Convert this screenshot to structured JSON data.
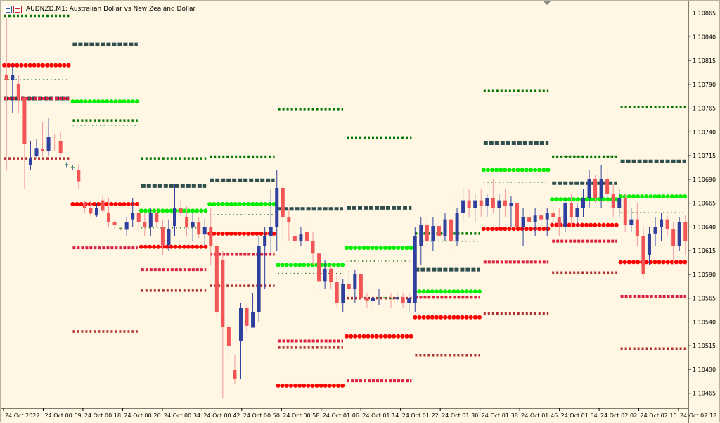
{
  "window": {
    "symbol_line": "AUDNZD,M1:  Australian Dollar vs New Zealand Dollar"
  },
  "colors": {
    "background": "#fff7e4",
    "bull_candle": "#2f3f9e",
    "bear_candle": "#f25555",
    "doji": "#2aa02a",
    "pivot": "#2f4f4f",
    "resistance_1": "#00ee00",
    "support_1": "#ff0000",
    "resistance_2": "#2f7f2f",
    "support_2": "#dd2040",
    "resistance_3": "#007700",
    "support_3": "#b03030"
  },
  "chart_data": {
    "type": "candlestick",
    "symbol": "AUDNZD",
    "timeframe": "M1",
    "ylim": [
      1.1045,
      1.10875
    ],
    "y_ticks": [
      "1.10865",
      "1.10840",
      "1.10815",
      "1.10790",
      "1.10765",
      "1.10740",
      "1.10715",
      "1.10690",
      "1.10665",
      "1.10640",
      "1.10615",
      "1.10590",
      "1.10565",
      "1.10540",
      "1.10515",
      "1.10490",
      "1.10465"
    ],
    "x_ticks": [
      "24 Oct 2022",
      "24 Oct 00:09",
      "24 Oct 00:18",
      "24 Oct 00:26",
      "24 Oct 00:34",
      "24 Oct 00:42",
      "24 Oct 00:50",
      "24 Oct 00:58",
      "24 Oct 01:06",
      "24 Oct 01:14",
      "24 Oct 01:22",
      "24 Oct 01:30",
      "24 Oct 01:38",
      "24 Oct 01:46",
      "24 Oct 01:54",
      "24 Oct 02:02",
      "24 Oct 02:10",
      "24 Oct 02:18"
    ],
    "levels": [
      {
        "segment": 0,
        "pivot": 1.10775,
        "r1": null,
        "s1": 1.1081,
        "r2": 1.10795,
        "s2": 1.10775,
        "r3": 1.10862,
        "s3": 1.10712
      },
      {
        "segment": 1,
        "pivot": 1.10832,
        "r1": 1.10772,
        "s1": 1.10664,
        "r2": 1.10747,
        "s2": 1.10618,
        "r3": 1.10752,
        "s3": 1.1053
      },
      {
        "segment": 2,
        "pivot": 1.10683,
        "r1": 1.10657,
        "s1": 1.10619,
        "r2": 1.10639,
        "s2": 1.10595,
        "r3": 1.10712,
        "s3": 1.10573
      },
      {
        "segment": 3,
        "pivot": 1.10689,
        "r1": 1.10664,
        "s1": 1.10633,
        "r2": 1.10653,
        "s2": 1.10611,
        "r3": 1.10714,
        "s3": 1.10578
      },
      {
        "segment": 4,
        "pivot": 1.10659,
        "r1": 1.106,
        "s1": 1.10473,
        "r2": 1.10591,
        "s2": 1.1052,
        "r3": 1.10764,
        "s3": 1.10513
      },
      {
        "segment": 5,
        "pivot": 1.1066,
        "r1": 1.10618,
        "s1": 1.10525,
        "r2": 1.10604,
        "s2": 1.10478,
        "r3": 1.10734,
        "s3": 1.10565
      },
      {
        "segment": 6,
        "pivot": 1.10595,
        "r1": 1.10572,
        "s1": 1.10545,
        "r2": 1.10625,
        "s2": 1.10566,
        "r3": 1.10633,
        "s3": 1.10505
      },
      {
        "segment": 7,
        "pivot": 1.10728,
        "r1": 1.107,
        "s1": 1.10638,
        "r2": 1.10687,
        "s2": 1.10603,
        "r3": 1.10783,
        "s3": 1.10549
      },
      {
        "segment": 8,
        "pivot": 1.10686,
        "r1": 1.10669,
        "s1": 1.10642,
        "r2": 1.10714,
        "s2": 1.10625,
        "r3": 1.10714,
        "s3": 1.10592
      },
      {
        "segment": 9,
        "pivot": 1.10709,
        "r1": 1.10672,
        "s1": 1.10603,
        "r2": 1.10655,
        "s2": 1.10567,
        "r3": 1.10766,
        "s3": 1.10512
      }
    ],
    "candles": [
      {
        "o": 1.108,
        "h": 1.1086,
        "l": 1.107,
        "c": 1.10795
      },
      {
        "o": 1.10795,
        "h": 1.1081,
        "l": 1.1076,
        "c": 1.108
      },
      {
        "o": 1.1079,
        "h": 1.108,
        "l": 1.1076,
        "c": 1.10776
      },
      {
        "o": 1.10776,
        "h": 1.10778,
        "l": 1.1068,
        "c": 1.10727
      },
      {
        "o": 1.10705,
        "h": 1.1073,
        "l": 1.107,
        "c": 1.10712
      },
      {
        "o": 1.10715,
        "h": 1.10732,
        "l": 1.10712,
        "c": 1.10723
      },
      {
        "o": 1.10722,
        "h": 1.1075,
        "l": 1.10715,
        "c": 1.1072
      },
      {
        "o": 1.1072,
        "h": 1.10755,
        "l": 1.10715,
        "c": 1.10735
      },
      {
        "o": 1.10735,
        "h": 1.10738,
        "l": 1.1072,
        "c": 1.10735
      },
      {
        "o": 1.1073,
        "h": 1.1074,
        "l": 1.10715,
        "c": 1.10718
      },
      {
        "o": 1.10705,
        "h": 1.10708,
        "l": 1.10703,
        "c": 1.10706
      },
      {
        "o": 1.10702,
        "h": 1.10705,
        "l": 1.107,
        "c": 1.10703
      },
      {
        "o": 1.107,
        "h": 1.10706,
        "l": 1.1068,
        "c": 1.10688
      },
      {
        "o": 1.10665,
        "h": 1.10668,
        "l": 1.10655,
        "c": 1.1066
      },
      {
        "o": 1.1066,
        "h": 1.10668,
        "l": 1.1065,
        "c": 1.10654
      },
      {
        "o": 1.10652,
        "h": 1.10665,
        "l": 1.1065,
        "c": 1.1066
      },
      {
        "o": 1.10668,
        "h": 1.10672,
        "l": 1.10655,
        "c": 1.10657
      },
      {
        "o": 1.10655,
        "h": 1.1067,
        "l": 1.1064,
        "c": 1.10645
      },
      {
        "o": 1.10645,
        "h": 1.10648,
        "l": 1.10638,
        "c": 1.10642
      },
      {
        "o": 1.10639,
        "h": 1.1064,
        "l": 1.10636,
        "c": 1.10638
      },
      {
        "o": 1.10637,
        "h": 1.1065,
        "l": 1.1063,
        "c": 1.10645
      },
      {
        "o": 1.10648,
        "h": 1.1067,
        "l": 1.1064,
        "c": 1.10655
      },
      {
        "o": 1.10655,
        "h": 1.10665,
        "l": 1.10635,
        "c": 1.10645
      },
      {
        "o": 1.10645,
        "h": 1.10655,
        "l": 1.1063,
        "c": 1.1064
      },
      {
        "o": 1.1064,
        "h": 1.1066,
        "l": 1.1063,
        "c": 1.10655
      },
      {
        "o": 1.10655,
        "h": 1.1066,
        "l": 1.1064,
        "c": 1.10645
      },
      {
        "o": 1.1064,
        "h": 1.10648,
        "l": 1.1061,
        "c": 1.10621
      },
      {
        "o": 1.10621,
        "h": 1.10648,
        "l": 1.10615,
        "c": 1.10638
      },
      {
        "o": 1.10641,
        "h": 1.10685,
        "l": 1.1063,
        "c": 1.1066
      },
      {
        "o": 1.1066,
        "h": 1.10668,
        "l": 1.1065,
        "c": 1.10655
      },
      {
        "o": 1.1065,
        "h": 1.10662,
        "l": 1.1063,
        "c": 1.1064
      },
      {
        "o": 1.1064,
        "h": 1.10655,
        "l": 1.10625,
        "c": 1.10645
      },
      {
        "o": 1.10645,
        "h": 1.1065,
        "l": 1.10628,
        "c": 1.10632
      },
      {
        "o": 1.10632,
        "h": 1.10648,
        "l": 1.1062,
        "c": 1.1064
      },
      {
        "o": 1.1064,
        "h": 1.1066,
        "l": 1.106,
        "c": 1.1062
      },
      {
        "o": 1.1062,
        "h": 1.10625,
        "l": 1.10545,
        "c": 1.1055
      },
      {
        "o": 1.10605,
        "h": 1.10615,
        "l": 1.1046,
        "c": 1.10535
      },
      {
        "o": 1.10535,
        "h": 1.1054,
        "l": 1.105,
        "c": 1.10515
      },
      {
        "o": 1.1049,
        "h": 1.10505,
        "l": 1.10475,
        "c": 1.1048
      },
      {
        "o": 1.1052,
        "h": 1.1056,
        "l": 1.1048,
        "c": 1.10555
      },
      {
        "o": 1.10555,
        "h": 1.10558,
        "l": 1.1053,
        "c": 1.10536
      },
      {
        "o": 1.10534,
        "h": 1.1057,
        "l": 1.10535,
        "c": 1.1055
      },
      {
        "o": 1.1055,
        "h": 1.1063,
        "l": 1.1054,
        "c": 1.1062
      },
      {
        "o": 1.1062,
        "h": 1.1064,
        "l": 1.10575,
        "c": 1.1063
      },
      {
        "o": 1.1063,
        "h": 1.1068,
        "l": 1.1061,
        "c": 1.1064
      },
      {
        "o": 1.1064,
        "h": 1.107,
        "l": 1.10615,
        "c": 1.10681
      },
      {
        "o": 1.10681,
        "h": 1.10685,
        "l": 1.10625,
        "c": 1.1065
      },
      {
        "o": 1.1065,
        "h": 1.1066,
        "l": 1.10625,
        "c": 1.10645
      },
      {
        "o": 1.1063,
        "h": 1.10645,
        "l": 1.10615,
        "c": 1.10625
      },
      {
        "o": 1.10625,
        "h": 1.1064,
        "l": 1.1062,
        "c": 1.10632
      },
      {
        "o": 1.10635,
        "h": 1.10645,
        "l": 1.10615,
        "c": 1.10625
      },
      {
        "o": 1.10625,
        "h": 1.10635,
        "l": 1.106,
        "c": 1.10612
      },
      {
        "o": 1.10612,
        "h": 1.1062,
        "l": 1.1057,
        "c": 1.10583
      },
      {
        "o": 1.10583,
        "h": 1.10605,
        "l": 1.10575,
        "c": 1.10596
      },
      {
        "o": 1.10596,
        "h": 1.106,
        "l": 1.10575,
        "c": 1.10582
      },
      {
        "o": 1.10582,
        "h": 1.1059,
        "l": 1.10555,
        "c": 1.1056
      },
      {
        "o": 1.1056,
        "h": 1.10585,
        "l": 1.1055,
        "c": 1.1058
      },
      {
        "o": 1.1058,
        "h": 1.10595,
        "l": 1.10565,
        "c": 1.10575
      },
      {
        "o": 1.10575,
        "h": 1.10595,
        "l": 1.1056,
        "c": 1.1059
      },
      {
        "o": 1.1059,
        "h": 1.10595,
        "l": 1.1056,
        "c": 1.10565
      },
      {
        "o": 1.10565,
        "h": 1.1057,
        "l": 1.10555,
        "c": 1.10562
      },
      {
        "o": 1.10562,
        "h": 1.1057,
        "l": 1.10555,
        "c": 1.10565
      },
      {
        "o": 1.10565,
        "h": 1.10575,
        "l": 1.10558,
        "c": 1.10566
      },
      {
        "o": 1.10566,
        "h": 1.1057,
        "l": 1.1056,
        "c": 1.10565
      },
      {
        "o": 1.10565,
        "h": 1.1057,
        "l": 1.10555,
        "c": 1.10564
      },
      {
        "o": 1.10564,
        "h": 1.10572,
        "l": 1.1056,
        "c": 1.10566
      },
      {
        "o": 1.10566,
        "h": 1.1057,
        "l": 1.10555,
        "c": 1.1056
      },
      {
        "o": 1.1056,
        "h": 1.1057,
        "l": 1.1055,
        "c": 1.10565
      },
      {
        "o": 1.1056,
        "h": 1.1064,
        "l": 1.1055,
        "c": 1.1063
      },
      {
        "o": 1.1062,
        "h": 1.1065,
        "l": 1.106,
        "c": 1.10642
      },
      {
        "o": 1.10642,
        "h": 1.1065,
        "l": 1.10615,
        "c": 1.10625
      },
      {
        "o": 1.10625,
        "h": 1.1065,
        "l": 1.10615,
        "c": 1.10641
      },
      {
        "o": 1.10641,
        "h": 1.10655,
        "l": 1.1062,
        "c": 1.1063
      },
      {
        "o": 1.1063,
        "h": 1.10655,
        "l": 1.10625,
        "c": 1.10648
      },
      {
        "o": 1.10648,
        "h": 1.1067,
        "l": 1.10615,
        "c": 1.10625
      },
      {
        "o": 1.10625,
        "h": 1.1066,
        "l": 1.1062,
        "c": 1.10655
      },
      {
        "o": 1.10655,
        "h": 1.1068,
        "l": 1.10645,
        "c": 1.10668
      },
      {
        "o": 1.10668,
        "h": 1.1068,
        "l": 1.1065,
        "c": 1.1066
      },
      {
        "o": 1.1066,
        "h": 1.10675,
        "l": 1.10645,
        "c": 1.10668
      },
      {
        "o": 1.10668,
        "h": 1.1068,
        "l": 1.1065,
        "c": 1.10662
      },
      {
        "o": 1.10662,
        "h": 1.10675,
        "l": 1.1065,
        "c": 1.1067
      },
      {
        "o": 1.1067,
        "h": 1.1069,
        "l": 1.10655,
        "c": 1.1066
      },
      {
        "o": 1.1066,
        "h": 1.10675,
        "l": 1.1064,
        "c": 1.10668
      },
      {
        "o": 1.10668,
        "h": 1.1068,
        "l": 1.1065,
        "c": 1.10662
      },
      {
        "o": 1.10662,
        "h": 1.10672,
        "l": 1.1064,
        "c": 1.10665
      },
      {
        "o": 1.10665,
        "h": 1.1067,
        "l": 1.1063,
        "c": 1.1064
      },
      {
        "o": 1.1064,
        "h": 1.1066,
        "l": 1.1062,
        "c": 1.1065
      },
      {
        "o": 1.1065,
        "h": 1.1066,
        "l": 1.1063,
        "c": 1.10645
      },
      {
        "o": 1.10645,
        "h": 1.1066,
        "l": 1.1063,
        "c": 1.10652
      },
      {
        "o": 1.10652,
        "h": 1.10662,
        "l": 1.1064,
        "c": 1.10648
      },
      {
        "o": 1.10648,
        "h": 1.1066,
        "l": 1.1063,
        "c": 1.10655
      },
      {
        "o": 1.10655,
        "h": 1.10662,
        "l": 1.1064,
        "c": 1.1065
      },
      {
        "o": 1.1065,
        "h": 1.1066,
        "l": 1.1063,
        "c": 1.1064
      },
      {
        "o": 1.1064,
        "h": 1.1067,
        "l": 1.10635,
        "c": 1.10665
      },
      {
        "o": 1.10665,
        "h": 1.10675,
        "l": 1.1064,
        "c": 1.1065
      },
      {
        "o": 1.1065,
        "h": 1.10665,
        "l": 1.1064,
        "c": 1.1066
      },
      {
        "o": 1.1066,
        "h": 1.1068,
        "l": 1.1065,
        "c": 1.1067
      },
      {
        "o": 1.1067,
        "h": 1.107,
        "l": 1.1066,
        "c": 1.1069
      },
      {
        "o": 1.1069,
        "h": 1.10695,
        "l": 1.10665,
        "c": 1.1067
      },
      {
        "o": 1.1067,
        "h": 1.10705,
        "l": 1.1066,
        "c": 1.1069
      },
      {
        "o": 1.1069,
        "h": 1.107,
        "l": 1.10665,
        "c": 1.10675
      },
      {
        "o": 1.10675,
        "h": 1.10685,
        "l": 1.1065,
        "c": 1.1066
      },
      {
        "o": 1.1066,
        "h": 1.1068,
        "l": 1.1065,
        "c": 1.1067
      },
      {
        "o": 1.1067,
        "h": 1.10675,
        "l": 1.10635,
        "c": 1.10642
      },
      {
        "o": 1.10642,
        "h": 1.1066,
        "l": 1.10635,
        "c": 1.10648
      },
      {
        "o": 1.10648,
        "h": 1.10665,
        "l": 1.1062,
        "c": 1.1063
      },
      {
        "o": 1.1063,
        "h": 1.1064,
        "l": 1.10585,
        "c": 1.1059
      },
      {
        "o": 1.1061,
        "h": 1.1064,
        "l": 1.106,
        "c": 1.10633
      },
      {
        "o": 1.10633,
        "h": 1.1065,
        "l": 1.1062,
        "c": 1.1064
      },
      {
        "o": 1.1064,
        "h": 1.10655,
        "l": 1.10625,
        "c": 1.10648
      },
      {
        "o": 1.10648,
        "h": 1.10652,
        "l": 1.1063,
        "c": 1.10638
      },
      {
        "o": 1.10638,
        "h": 1.10645,
        "l": 1.106,
        "c": 1.1062
      },
      {
        "o": 1.1062,
        "h": 1.1065,
        "l": 1.10615,
        "c": 1.10645
      },
      {
        "o": 1.10645,
        "h": 1.10652,
        "l": 1.1061,
        "c": 1.10625
      }
    ]
  }
}
